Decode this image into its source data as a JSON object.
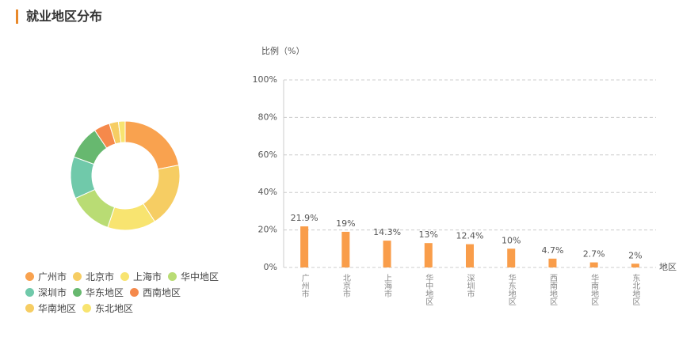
{
  "title": "就业地区分布",
  "chart_data": [
    {
      "type": "pie",
      "donut": true,
      "categories": [
        "广州市",
        "北京市",
        "上海市",
        "华中地区",
        "深圳市",
        "华东地区",
        "西南地区",
        "华南地区",
        "东北地区"
      ],
      "values": [
        21.9,
        19,
        14.3,
        13,
        12.4,
        10,
        4.7,
        2.7,
        2
      ],
      "colors": [
        "#f9a24f",
        "#f6cd63",
        "#f8e470",
        "#b9dc74",
        "#70c9aa",
        "#67b86f",
        "#f5894b",
        "#f6cd63",
        "#f8e470"
      ]
    },
    {
      "type": "bar",
      "y_label": "比例（%）",
      "x_label": "地区",
      "categories": [
        "广州市",
        "北京市",
        "上海市",
        "华中地区",
        "深圳市",
        "华东地区",
        "西南地区",
        "华南地区",
        "东北地区"
      ],
      "values": [
        21.9,
        19,
        14.3,
        13,
        12.4,
        10,
        4.7,
        2.7,
        2
      ],
      "value_labels": [
        "21.9%",
        "19%",
        "14.3%",
        "13%",
        "12.4%",
        "10%",
        "4.7%",
        "2.7%",
        "2%"
      ],
      "color": "#f99d4a",
      "ylim": [
        0,
        100
      ],
      "yticks": [
        {
          "value": 0,
          "label": "0%"
        },
        {
          "value": 20,
          "label": "20%"
        },
        {
          "value": 40,
          "label": "40%"
        },
        {
          "value": 60,
          "label": "60%"
        },
        {
          "value": 80,
          "label": "80%"
        },
        {
          "value": 100,
          "label": "100%"
        }
      ],
      "grid": true
    }
  ]
}
